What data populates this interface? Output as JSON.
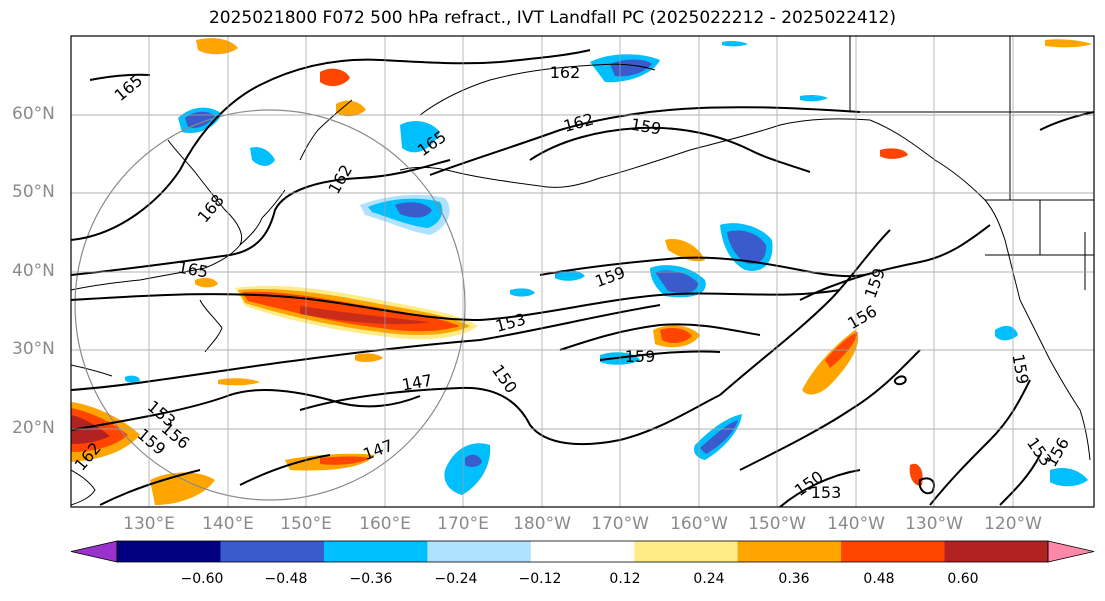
{
  "title": "2025021800 F072 500 hPa refract., IVT Landfall PC (2025022212 - 2025022412)",
  "lat_labels": [
    "60°N",
    "50°N",
    "40°N",
    "30°N",
    "20°N"
  ],
  "lon_labels": [
    "130°E",
    "140°E",
    "150°E",
    "160°E",
    "170°E",
    "180°W",
    "170°W",
    "160°W",
    "150°W",
    "140°W",
    "130°W",
    "120°W"
  ],
  "colorbar": {
    "ticks": [
      "−0.60",
      "−0.48",
      "−0.36",
      "−0.24",
      "−0.12",
      "0.12",
      "0.24",
      "0.36",
      "0.48",
      "0.60"
    ],
    "colors": [
      "#9932cc",
      "#000080",
      "#3a5bcc",
      "#00bfff",
      "#b0e2ff",
      "#ffffff",
      "#ffeb87",
      "#ffa500",
      "#ff4500",
      "#b22222",
      "#ff88aa"
    ]
  },
  "contour_labels": [
    "165",
    "162",
    "168",
    "165",
    "159",
    "162",
    "162",
    "159",
    "159",
    "153",
    "159",
    "156",
    "147",
    "150",
    "153",
    "156",
    "159",
    "162",
    "147",
    "150",
    "153",
    "159",
    "153",
    "156",
    "165"
  ],
  "palette": {
    "warm1": "#ffeb87",
    "warm2": "#ffa500",
    "warm3": "#ff4500",
    "warm4": "#b22222",
    "cool1": "#b0e2ff",
    "cool2": "#00bfff",
    "cool3": "#3a5bcc"
  }
}
